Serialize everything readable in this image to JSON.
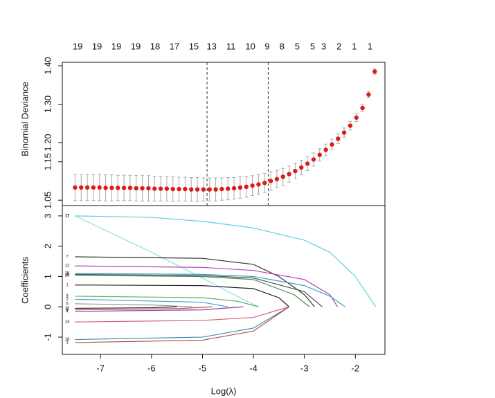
{
  "chart_data": [
    {
      "type": "errorbar",
      "ylabel": "Binomial Deviance",
      "xlim": [
        -7.75,
        -1.42
      ],
      "ylim": [
        1.036,
        1.409
      ],
      "yticks": [
        {
          "value": 1.05,
          "label": "1.05"
        },
        {
          "value": 1.15,
          "label": "1.15"
        },
        {
          "value": 1.2,
          "label": "1.20"
        },
        {
          "value": 1.3,
          "label": "1.30"
        },
        {
          "value": 1.4,
          "label": "1.40"
        }
      ],
      "x2ticks": [
        {
          "value": -7.45,
          "label": "19"
        },
        {
          "value": -7.07,
          "label": "19"
        },
        {
          "value": -6.69,
          "label": "19"
        },
        {
          "value": -6.31,
          "label": "19"
        },
        {
          "value": -5.93,
          "label": "18"
        },
        {
          "value": -5.55,
          "label": "17"
        },
        {
          "value": -5.17,
          "label": "15"
        },
        {
          "value": -4.82,
          "label": "13"
        },
        {
          "value": -4.44,
          "label": "11"
        },
        {
          "value": -4.06,
          "label": "10"
        },
        {
          "value": -3.73,
          "label": "9"
        },
        {
          "value": -3.44,
          "label": "8"
        },
        {
          "value": -3.14,
          "label": "5"
        },
        {
          "value": -2.84,
          "label": "5"
        },
        {
          "value": -2.62,
          "label": "3"
        },
        {
          "value": -2.32,
          "label": "2"
        },
        {
          "value": -2.02,
          "label": "1"
        },
        {
          "value": -1.71,
          "label": "1"
        }
      ],
      "vlines": [
        -4.91,
        -3.71
      ],
      "color": "#dd1c1a",
      "error_color": "#aaaaaa",
      "x": [
        -7.5,
        -7.38,
        -7.26,
        -7.14,
        -7.02,
        -6.9,
        -6.78,
        -6.66,
        -6.54,
        -6.42,
        -6.3,
        -6.18,
        -6.06,
        -5.94,
        -5.82,
        -5.7,
        -5.58,
        -5.46,
        -5.34,
        -5.22,
        -5.1,
        -4.98,
        -4.86,
        -4.74,
        -4.62,
        -4.5,
        -4.38,
        -4.26,
        -4.14,
        -4.02,
        -3.9,
        -3.78,
        -3.66,
        -3.54,
        -3.42,
        -3.3,
        -3.18,
        -3.06,
        -2.94,
        -2.82,
        -2.7,
        -2.58,
        -2.46,
        -2.34,
        -2.22,
        -2.1,
        -1.98,
        -1.86,
        -1.74,
        -1.62
      ],
      "values": [
        1.083,
        1.083,
        1.083,
        1.083,
        1.083,
        1.082,
        1.082,
        1.082,
        1.082,
        1.082,
        1.081,
        1.081,
        1.081,
        1.08,
        1.08,
        1.08,
        1.079,
        1.079,
        1.079,
        1.078,
        1.078,
        1.078,
        1.078,
        1.078,
        1.079,
        1.08,
        1.081,
        1.083,
        1.085,
        1.088,
        1.091,
        1.095,
        1.1,
        1.105,
        1.111,
        1.118,
        1.126,
        1.135,
        1.145,
        1.156,
        1.168,
        1.181,
        1.195,
        1.21,
        1.226,
        1.244,
        1.265,
        1.29,
        1.325,
        1.385
      ],
      "errors": [
        0.034,
        0.034,
        0.034,
        0.034,
        0.034,
        0.034,
        0.034,
        0.033,
        0.033,
        0.033,
        0.033,
        0.033,
        0.033,
        0.032,
        0.032,
        0.032,
        0.032,
        0.031,
        0.031,
        0.031,
        0.031,
        0.03,
        0.03,
        0.03,
        0.029,
        0.029,
        0.028,
        0.028,
        0.027,
        0.026,
        0.026,
        0.025,
        0.024,
        0.023,
        0.022,
        0.021,
        0.02,
        0.019,
        0.018,
        0.017,
        0.016,
        0.015,
        0.014,
        0.013,
        0.012,
        0.011,
        0.01,
        0.009,
        0.008,
        0.007
      ]
    },
    {
      "type": "line",
      "ylabel": "Coefficients",
      "xlabel": "Log(λ)",
      "xlim": [
        -7.75,
        -1.42
      ],
      "ylim": [
        -1.57,
        3.34
      ],
      "xticks": [
        -7,
        -6,
        -5,
        -4,
        -3,
        -2
      ],
      "yticks": [
        -1,
        0,
        1,
        2,
        3
      ],
      "series": [
        {
          "name": "11",
          "color": "#5bd3dc",
          "x": [
            -7.5,
            -6,
            -5,
            -4,
            -3,
            -2.5,
            -2,
            -1.6
          ],
          "values": [
            3.0,
            2.95,
            2.82,
            2.6,
            2.2,
            1.8,
            1.0,
            0
          ]
        },
        {
          "name": "17",
          "color": "#8ddde3",
          "x": [
            -7.5,
            -6,
            -5,
            -4.5,
            -3.9
          ],
          "values": [
            3.0,
            1.8,
            0.95,
            0.5,
            0
          ]
        },
        {
          "name": "7",
          "color": "#333333",
          "x": [
            -7.5,
            -5,
            -4,
            -3.5,
            -3,
            -2.8
          ],
          "values": [
            1.65,
            1.6,
            1.4,
            1.0,
            0.4,
            0
          ]
        },
        {
          "name": "12",
          "color": "#b040b8",
          "x": [
            -7.5,
            -5,
            -4,
            -3,
            -2.5,
            -2.35
          ],
          "values": [
            1.35,
            1.3,
            1.2,
            0.9,
            0.4,
            0
          ]
        },
        {
          "name": "15",
          "color": "#3aa0c8",
          "x": [
            -7.5,
            -5,
            -4,
            -3,
            -2.5,
            -2.2
          ],
          "values": [
            1.1,
            1.07,
            1.0,
            0.7,
            0.35,
            0
          ]
        },
        {
          "name": "16",
          "color": "#555555",
          "x": [
            -7.5,
            -5,
            -4,
            -3,
            -2.65
          ],
          "values": [
            1.07,
            1.03,
            0.95,
            0.5,
            0
          ]
        },
        {
          "name": "10",
          "color": "#4a8a4a",
          "x": [
            -7.5,
            -5,
            -4,
            -3.2,
            -2.9
          ],
          "values": [
            1.04,
            1.0,
            0.9,
            0.4,
            0
          ]
        },
        {
          "name": "1",
          "color": "#222222",
          "x": [
            -7.5,
            -5,
            -4,
            -3.5,
            -3.3
          ],
          "values": [
            0.72,
            0.7,
            0.6,
            0.3,
            0
          ]
        },
        {
          "name": "9",
          "color": "#5cb85c",
          "x": [
            -7.5,
            -5,
            -4.3,
            -3.9
          ],
          "values": [
            0.35,
            0.3,
            0.18,
            0
          ]
        },
        {
          "name": "2",
          "color": "#4aa0d8",
          "x": [
            -7.5,
            -5,
            -4.5
          ],
          "values": [
            0.25,
            0.15,
            0
          ]
        },
        {
          "name": "5",
          "color": "#999999",
          "x": [
            -7.5,
            -6,
            -5.2
          ],
          "values": [
            0.1,
            0.06,
            0
          ]
        },
        {
          "name": "13",
          "color": "#222222",
          "x": [
            -7.5,
            -6,
            -5.5
          ],
          "values": [
            -0.05,
            -0.03,
            0
          ]
        },
        {
          "name": "6",
          "color": "#c05050",
          "x": [
            -7.5,
            -5.5,
            -4.8
          ],
          "values": [
            -0.1,
            -0.06,
            0
          ]
        },
        {
          "name": "4",
          "color": "#8a40a8",
          "x": [
            -7.5,
            -5,
            -4.2
          ],
          "values": [
            -0.15,
            -0.1,
            0
          ]
        },
        {
          "name": "14",
          "color": "#d0607a",
          "x": [
            -7.5,
            -5,
            -4,
            -3.3
          ],
          "values": [
            -0.5,
            -0.45,
            -0.35,
            0
          ]
        },
        {
          "name": "18",
          "color": "#3a8fb0",
          "x": [
            -7.5,
            -5,
            -4,
            -3.3
          ],
          "values": [
            -1.08,
            -1.0,
            -0.7,
            0
          ]
        },
        {
          "name": "3",
          "color": "#b05050",
          "x": [
            -7.5,
            -5,
            -4,
            -3.3
          ],
          "values": [
            -1.18,
            -1.1,
            -0.8,
            0
          ]
        }
      ]
    }
  ]
}
